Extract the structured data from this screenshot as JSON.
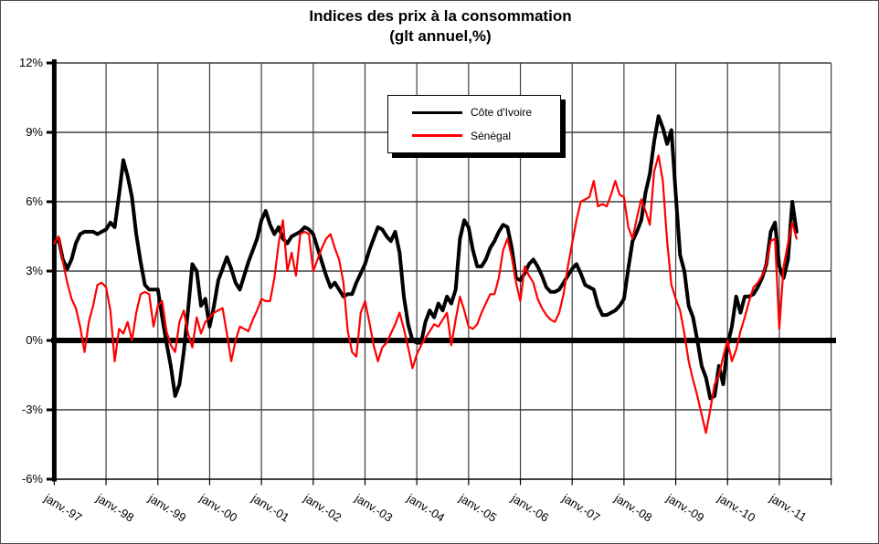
{
  "title": {
    "line1": "Indices des prix à la consommation",
    "line2": "(glt annuel,%)"
  },
  "legend": {
    "items": [
      {
        "label": "Côte d'Ivoire",
        "color": "#000000"
      },
      {
        "label": "Sénégal",
        "color": "#ff0000"
      }
    ]
  },
  "y_axis": {
    "tick_labels": [
      "12%",
      "9%",
      "6%",
      "3%",
      "0%",
      "-3%",
      "-6%"
    ],
    "tick_values": [
      12,
      9,
      6,
      3,
      0,
      -3,
      -6
    ]
  },
  "x_axis": {
    "tick_labels": [
      "janv.-97",
      "janv.-98",
      "janv.-99",
      "janv.-00",
      "janv.-01",
      "janv.-02",
      "janv.-03",
      "janv.-04",
      "janv.-05",
      "janv.-06",
      "janv.-07",
      "janv.-08",
      "janv.-09",
      "janv.-10",
      "janv.-11"
    ]
  },
  "colors": {
    "grid": "#3f3f3f",
    "axis": "#000000",
    "background": "#ffffff",
    "cote_divoire": "#000000",
    "senegal": "#ff0000"
  },
  "chart_data": {
    "type": "line",
    "title": "Indices des prix à la consommation (glt annuel,%)",
    "y_unit": "%",
    "ylim": [
      -6,
      12
    ],
    "y_ticks": [
      12,
      9,
      6,
      3,
      0,
      -3,
      -6
    ],
    "grid": true,
    "legend_position": "top-center-inside",
    "frequency": "monthly",
    "x_start": "1997-01",
    "x_end": "2011-05",
    "x_tick_labels": [
      "janv.-97",
      "janv.-98",
      "janv.-99",
      "janv.-00",
      "janv.-01",
      "janv.-02",
      "janv.-03",
      "janv.-04",
      "janv.-05",
      "janv.-06",
      "janv.-07",
      "janv.-08",
      "janv.-09",
      "janv.-10",
      "janv.-11"
    ],
    "zero_line": "thick-black",
    "series": [
      {
        "name": "Côte d'Ivoire",
        "color": "#000000",
        "line_width": 4,
        "values": [
          4.2,
          4.4,
          3.5,
          3.1,
          3.5,
          4.2,
          4.6,
          4.7,
          4.7,
          4.7,
          4.6,
          4.7,
          4.8,
          5.1,
          4.9,
          6.3,
          7.8,
          7.1,
          6.2,
          4.6,
          3.4,
          2.4,
          2.2,
          2.2,
          2.2,
          1.0,
          -0.1,
          -1.1,
          -2.4,
          -1.9,
          -0.5,
          1.3,
          3.3,
          3.0,
          1.5,
          1.8,
          0.6,
          1.5,
          2.6,
          3.1,
          3.6,
          3.1,
          2.5,
          2.2,
          2.8,
          3.4,
          3.9,
          4.4,
          5.2,
          5.6,
          5.0,
          4.6,
          4.9,
          4.4,
          4.2,
          4.5,
          4.6,
          4.7,
          4.9,
          4.8,
          4.6,
          4.0,
          3.4,
          2.8,
          2.3,
          2.5,
          2.2,
          1.9,
          2.0,
          2.0,
          2.5,
          2.9,
          3.3,
          3.9,
          4.4,
          4.9,
          4.8,
          4.5,
          4.3,
          4.7,
          3.8,
          1.9,
          0.7,
          0.0,
          -0.1,
          -0.1,
          0.8,
          1.3,
          1.0,
          1.6,
          1.3,
          1.9,
          1.6,
          2.2,
          4.4,
          5.2,
          4.9,
          3.9,
          3.2,
          3.2,
          3.5,
          4.0,
          4.3,
          4.7,
          5.0,
          4.9,
          4.0,
          2.7,
          2.6,
          2.9,
          3.3,
          3.5,
          3.2,
          2.8,
          2.3,
          2.1,
          2.1,
          2.2,
          2.5,
          2.8,
          3.1,
          3.3,
          2.9,
          2.4,
          2.3,
          2.2,
          1.5,
          1.1,
          1.1,
          1.2,
          1.3,
          1.5,
          1.8,
          3.1,
          4.3,
          4.7,
          5.2,
          6.4,
          7.2,
          8.6,
          9.7,
          9.2,
          8.5,
          9.1,
          6.3,
          3.7,
          3.0,
          1.5,
          1.0,
          0.0,
          -1.1,
          -1.6,
          -2.5,
          -2.4,
          -1.1,
          -1.9,
          -0.2,
          0.6,
          1.9,
          1.2,
          1.9,
          1.9,
          2.0,
          2.3,
          2.7,
          3.3,
          4.7,
          5.1,
          3.2,
          2.7,
          3.5,
          6.0,
          4.7
        ]
      },
      {
        "name": "Sénégal",
        "color": "#ff0000",
        "line_width": 2.2,
        "values": [
          4.2,
          4.5,
          3.4,
          2.5,
          1.8,
          1.4,
          0.6,
          -0.5,
          0.8,
          1.5,
          2.4,
          2.5,
          2.3,
          1.3,
          -0.9,
          0.5,
          0.3,
          0.8,
          0.0,
          1.2,
          2.0,
          2.1,
          2.0,
          0.6,
          1.5,
          1.7,
          0.4,
          -0.2,
          -0.5,
          0.8,
          1.3,
          0.3,
          -0.3,
          1.0,
          0.3,
          0.8,
          1.0,
          1.2,
          1.3,
          1.4,
          0.3,
          -0.9,
          0.0,
          0.6,
          0.5,
          0.4,
          0.9,
          1.3,
          1.8,
          1.7,
          1.7,
          2.7,
          4.2,
          5.2,
          3.0,
          3.8,
          2.8,
          4.6,
          4.7,
          4.6,
          3.0,
          3.5,
          4.0,
          4.4,
          4.6,
          4.0,
          3.5,
          2.5,
          0.4,
          -0.5,
          -0.7,
          1.2,
          1.7,
          0.8,
          -0.2,
          -0.9,
          -0.3,
          -0.1,
          0.3,
          0.7,
          1.2,
          0.5,
          -0.3,
          -1.2,
          -0.6,
          -0.2,
          0.1,
          0.4,
          0.7,
          0.6,
          0.9,
          1.2,
          -0.2,
          0.9,
          1.9,
          1.3,
          0.6,
          0.5,
          0.7,
          1.2,
          1.6,
          2.0,
          2.0,
          2.7,
          3.9,
          4.4,
          3.6,
          2.5,
          1.7,
          3.2,
          2.8,
          2.5,
          1.8,
          1.4,
          1.1,
          0.9,
          0.8,
          1.2,
          2.0,
          3.2,
          4.2,
          5.2,
          6.0,
          6.1,
          6.2,
          6.9,
          5.8,
          5.9,
          5.8,
          6.3,
          6.9,
          6.3,
          6.2,
          4.9,
          4.4,
          5.3,
          6.1,
          5.6,
          5.0,
          7.3,
          8.0,
          6.9,
          4.3,
          2.4,
          1.8,
          1.3,
          0.3,
          -0.9,
          -1.7,
          -2.4,
          -3.2,
          -4.0,
          -3.0,
          -1.9,
          -1.5,
          -0.7,
          0.0,
          -0.9,
          -0.4,
          0.4,
          1.0,
          1.7,
          2.3,
          2.5,
          2.8,
          3.3,
          4.3,
          4.4,
          0.5,
          3.2,
          4.2,
          5.1,
          4.4
        ]
      }
    ]
  }
}
